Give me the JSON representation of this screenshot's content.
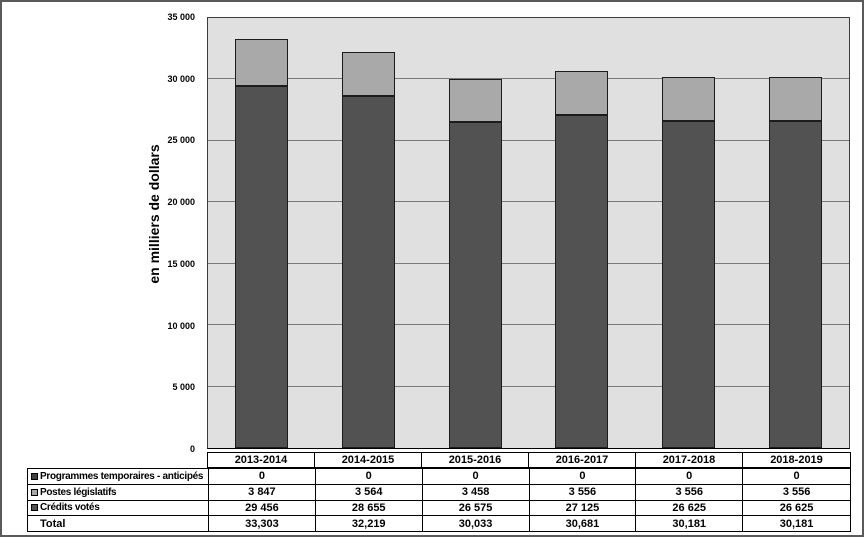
{
  "chart_data": {
    "type": "bar",
    "stacked": true,
    "title": "",
    "xlabel": "",
    "ylabel": "en milliers de dollars",
    "categories": [
      "2013-2014",
      "2014-2015",
      "2015-2016",
      "2016-2017",
      "2017-2018",
      "2018-2019"
    ],
    "series": [
      {
        "name": "Programmes temporaires - anticipés",
        "values": [
          0,
          0,
          0,
          0,
          0,
          0
        ],
        "color": "#404040"
      },
      {
        "name": "Postes législatifs",
        "values": [
          3847,
          3564,
          3458,
          3556,
          3556,
          3556
        ],
        "color": "#a9a9a9"
      },
      {
        "name": "Crédits votés",
        "values": [
          29456,
          28655,
          26575,
          27125,
          26625,
          26625
        ],
        "color": "#525252"
      }
    ],
    "totals": [
      33303,
      32219,
      30033,
      30681,
      30181,
      30181
    ],
    "ylim": [
      0,
      35000
    ],
    "ytick_step": 5000,
    "ytick_labels": [
      "0",
      "5 000",
      "10 000",
      "15 000",
      "20 000",
      "25 000",
      "30 000",
      "35 000"
    ],
    "grid": "horizontal-only",
    "plot_background": "#e0e0e0",
    "legend_position": "table-below-left"
  },
  "table": {
    "header": [
      "2013-2014",
      "2014-2015",
      "2015-2016",
      "2016-2017",
      "2017-2018",
      "2018-2019"
    ],
    "rows": [
      {
        "label": "Programmes temporaires - anticipés",
        "swatch": "dark-filled",
        "values": [
          "0",
          "0",
          "0",
          "0",
          "0",
          "0"
        ]
      },
      {
        "label": "Postes législatifs",
        "swatch": "light-filled",
        "values": [
          "3 847",
          "3 564",
          "3 458",
          "3 556",
          "3 556",
          "3 556"
        ]
      },
      {
        "label": "Crédits votés",
        "swatch": "dark-gray-filled",
        "values": [
          "29 456",
          "28 655",
          "26 575",
          "27 125",
          "26 625",
          "26 625"
        ]
      },
      {
        "label": "Total",
        "swatch": "none",
        "values": [
          "33,303",
          "32,219",
          "30,033",
          "30,681",
          "30,181",
          "30,181"
        ]
      }
    ]
  }
}
